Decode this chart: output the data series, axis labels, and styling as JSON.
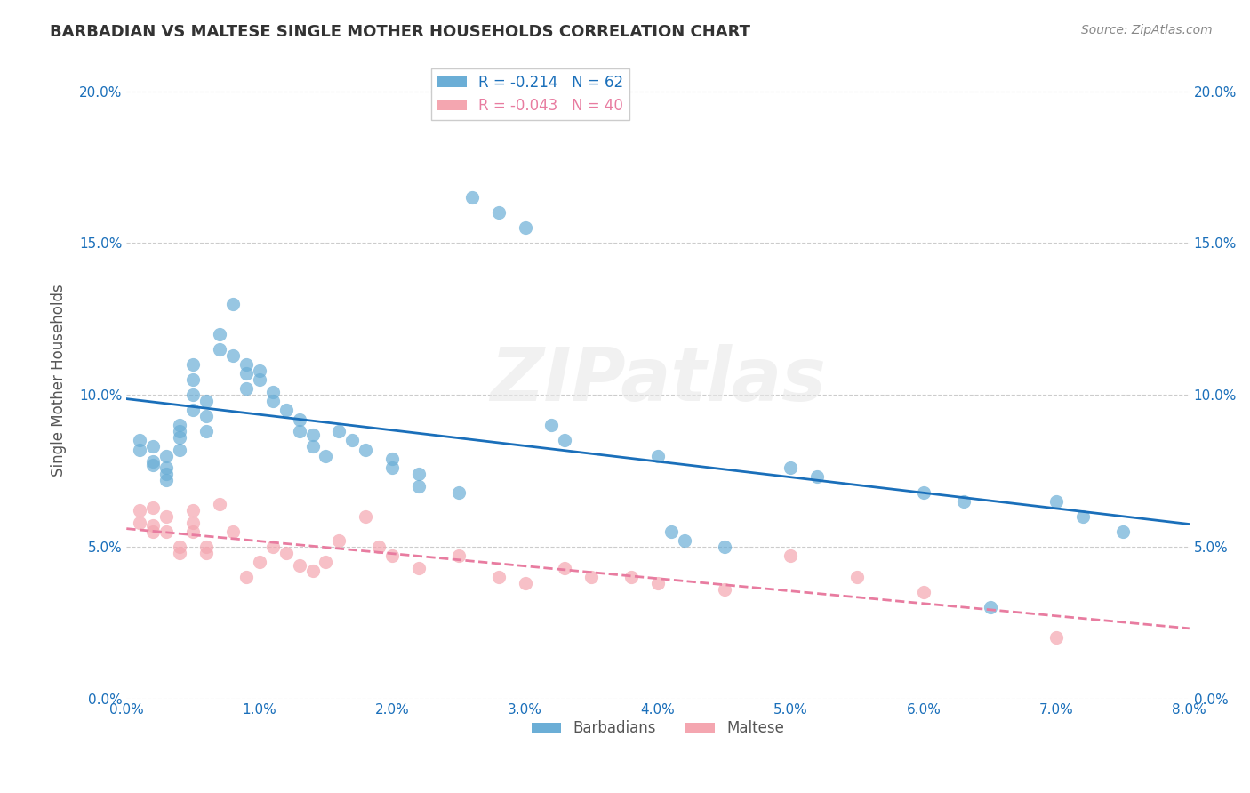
{
  "title": "BARBADIAN VS MALTESE SINGLE MOTHER HOUSEHOLDS CORRELATION CHART",
  "source": "Source: ZipAtlas.com",
  "ylabel": "Single Mother Households",
  "xlabel_ticks": [
    "0.0%",
    "1.0%",
    "2.0%",
    "3.0%",
    "4.0%",
    "5.0%",
    "6.0%",
    "7.0%",
    "8.0%"
  ],
  "ylabel_ticks": [
    "0.0%",
    "5.0%",
    "10.0%",
    "15.0%",
    "20.0%"
  ],
  "xlim": [
    0.0,
    0.08
  ],
  "ylim": [
    0.0,
    0.21
  ],
  "watermark": "ZIPatlas",
  "legend_blue_r": "-0.214",
  "legend_blue_n": "62",
  "legend_pink_r": "-0.043",
  "legend_pink_n": "40",
  "blue_color": "#6baed6",
  "pink_color": "#f4a6b0",
  "blue_line_color": "#1a6fba",
  "pink_line_color": "#e87ca0",
  "barbadians_x": [
    0.001,
    0.001,
    0.002,
    0.002,
    0.002,
    0.003,
    0.003,
    0.003,
    0.003,
    0.004,
    0.004,
    0.004,
    0.004,
    0.005,
    0.005,
    0.005,
    0.005,
    0.006,
    0.006,
    0.006,
    0.007,
    0.007,
    0.008,
    0.008,
    0.009,
    0.009,
    0.009,
    0.01,
    0.01,
    0.011,
    0.011,
    0.012,
    0.013,
    0.013,
    0.014,
    0.014,
    0.015,
    0.016,
    0.017,
    0.018,
    0.02,
    0.02,
    0.022,
    0.022,
    0.025,
    0.026,
    0.028,
    0.03,
    0.032,
    0.033,
    0.04,
    0.041,
    0.042,
    0.045,
    0.05,
    0.052,
    0.06,
    0.063,
    0.065,
    0.07,
    0.072,
    0.075
  ],
  "barbadians_y": [
    0.085,
    0.082,
    0.083,
    0.078,
    0.077,
    0.08,
    0.076,
    0.074,
    0.072,
    0.09,
    0.088,
    0.086,
    0.082,
    0.095,
    0.11,
    0.105,
    0.1,
    0.098,
    0.093,
    0.088,
    0.12,
    0.115,
    0.13,
    0.113,
    0.11,
    0.107,
    0.102,
    0.108,
    0.105,
    0.101,
    0.098,
    0.095,
    0.092,
    0.088,
    0.087,
    0.083,
    0.08,
    0.088,
    0.085,
    0.082,
    0.079,
    0.076,
    0.074,
    0.07,
    0.068,
    0.165,
    0.16,
    0.155,
    0.09,
    0.085,
    0.08,
    0.055,
    0.052,
    0.05,
    0.076,
    0.073,
    0.068,
    0.065,
    0.03,
    0.065,
    0.06,
    0.055
  ],
  "maltese_x": [
    0.001,
    0.001,
    0.002,
    0.002,
    0.002,
    0.003,
    0.003,
    0.004,
    0.004,
    0.005,
    0.005,
    0.005,
    0.006,
    0.006,
    0.007,
    0.008,
    0.009,
    0.01,
    0.011,
    0.012,
    0.013,
    0.014,
    0.015,
    0.016,
    0.018,
    0.019,
    0.02,
    0.022,
    0.025,
    0.028,
    0.03,
    0.033,
    0.035,
    0.038,
    0.04,
    0.045,
    0.05,
    0.055,
    0.06,
    0.07
  ],
  "maltese_y": [
    0.062,
    0.058,
    0.063,
    0.057,
    0.055,
    0.06,
    0.055,
    0.05,
    0.048,
    0.062,
    0.058,
    0.055,
    0.05,
    0.048,
    0.064,
    0.055,
    0.04,
    0.045,
    0.05,
    0.048,
    0.044,
    0.042,
    0.045,
    0.052,
    0.06,
    0.05,
    0.047,
    0.043,
    0.047,
    0.04,
    0.038,
    0.043,
    0.04,
    0.04,
    0.038,
    0.036,
    0.047,
    0.04,
    0.035,
    0.02
  ]
}
